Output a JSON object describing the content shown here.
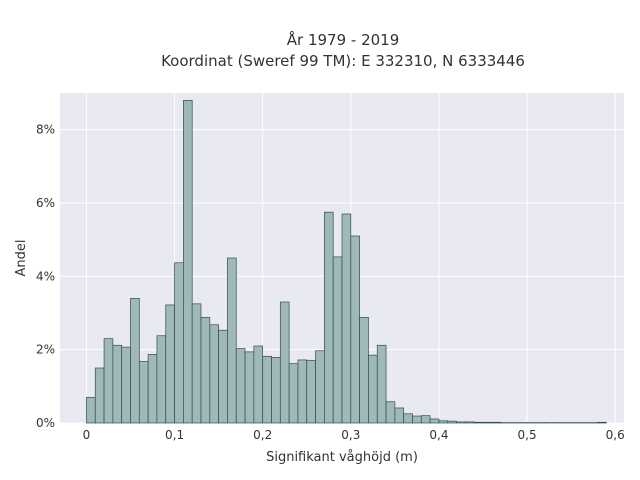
{
  "chart_data": {
    "type": "bar",
    "title_line1": "År 1979 - 2019",
    "title_line2": "Koordinat (Sweref 99 TM): E 332310, N 6333446",
    "xlabel": "Signifikant våghöjd (m)",
    "ylabel": "Andel",
    "xlim": [
      -0.03,
      0.61
    ],
    "ylim": [
      0,
      0.09
    ],
    "grid": true,
    "bin_width": 0.01,
    "x_ticks": [
      0,
      0.1,
      0.2,
      0.3,
      0.4,
      0.5,
      0.6
    ],
    "x_tick_labels": [
      "0",
      "0,1",
      "0,2",
      "0,3",
      "0,4",
      "0,5",
      "0,6"
    ],
    "y_ticks": [
      0,
      0.02,
      0.04,
      0.06,
      0.08
    ],
    "y_tick_labels": [
      "0%",
      "2%",
      "4%",
      "6%",
      "8%"
    ],
    "bin_starts": [
      0,
      0.01,
      0.02,
      0.03,
      0.04,
      0.05,
      0.06,
      0.07,
      0.08,
      0.09,
      0.1,
      0.11,
      0.12,
      0.13,
      0.14,
      0.15,
      0.16,
      0.17,
      0.18,
      0.19,
      0.2,
      0.21,
      0.22,
      0.23,
      0.24,
      0.25,
      0.26,
      0.27,
      0.28,
      0.29,
      0.3,
      0.31,
      0.32,
      0.33,
      0.34,
      0.35,
      0.36,
      0.37,
      0.38,
      0.39,
      0.4,
      0.41,
      0.42,
      0.43,
      0.44,
      0.45,
      0.46,
      0.47,
      0.48,
      0.49,
      0.5,
      0.51,
      0.52,
      0.53,
      0.54,
      0.55,
      0.56,
      0.57,
      0.58
    ],
    "values": [
      0.007,
      0.015,
      0.023,
      0.0212,
      0.0207,
      0.034,
      0.0168,
      0.0187,
      0.0238,
      0.0322,
      0.0437,
      0.088,
      0.0325,
      0.0288,
      0.0268,
      0.0253,
      0.045,
      0.0203,
      0.0194,
      0.021,
      0.0182,
      0.0179,
      0.033,
      0.0162,
      0.0172,
      0.0171,
      0.0197,
      0.0575,
      0.0453,
      0.057,
      0.051,
      0.0288,
      0.0185,
      0.0212,
      0.0058,
      0.0041,
      0.0025,
      0.0019,
      0.002,
      0.0011,
      0.0006,
      0.0005,
      0.0003,
      0.0003,
      0.0002,
      0.0002,
      0.0002,
      0.0001,
      0.0001,
      0.0001,
      0.0001,
      0.0001,
      0.0001,
      0.0001,
      0.0001,
      0.0001,
      0.0001,
      0.0001,
      0.0002
    ],
    "colors": {
      "bar_fill": "#9fb8b8",
      "bar_stroke": "#2f4f4f",
      "plot_bg": "#e9e9f2",
      "grid": "#ffffff"
    }
  }
}
